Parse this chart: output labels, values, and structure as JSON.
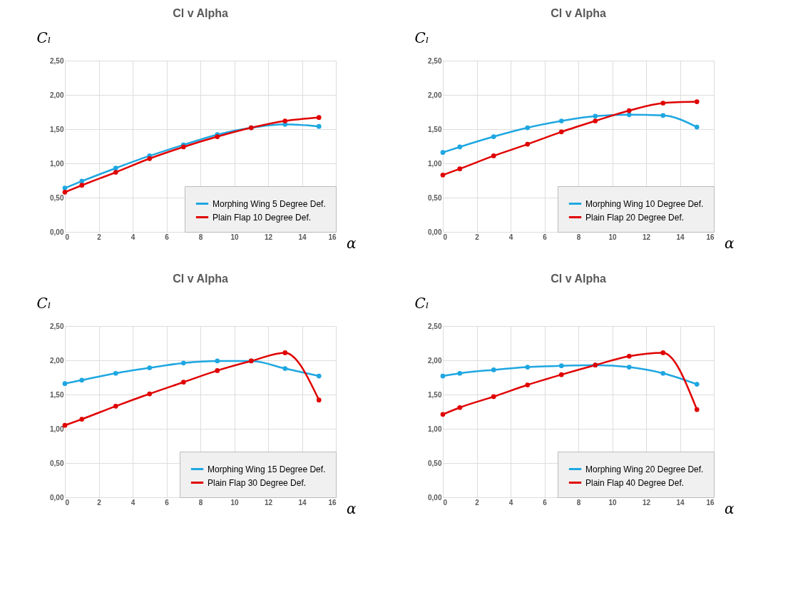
{
  "chart_data": [
    {
      "type": "line",
      "title": "Cl v Alpha",
      "xlabel": "α",
      "ylabel": "Cₗ",
      "x": [
        0,
        1,
        3,
        5,
        7,
        9,
        11,
        13,
        15
      ],
      "series": [
        {
          "name": "Morphing Wing 5 Degree Def.",
          "color": "#1ea7e1",
          "values": [
            0.64,
            0.74,
            0.93,
            1.11,
            1.27,
            1.42,
            1.52,
            1.57,
            1.54
          ]
        },
        {
          "name": "Plain Flap 10 Degree Def.",
          "color": "#e00000",
          "values": [
            0.58,
            0.68,
            0.87,
            1.07,
            1.24,
            1.39,
            1.52,
            1.62,
            1.67
          ]
        }
      ],
      "xlim": [
        0,
        16
      ],
      "xticks": [
        0,
        2,
        4,
        6,
        8,
        10,
        12,
        14,
        16
      ],
      "ylim": [
        0,
        2.5
      ],
      "yticks": [
        {
          "value": 0,
          "label": "0,00"
        },
        {
          "value": 0.5,
          "label": "0,50"
        },
        {
          "value": 1,
          "label": "1,00"
        },
        {
          "value": 1.5,
          "label": "1,50"
        },
        {
          "value": 2,
          "label": "2,00"
        },
        {
          "value": 2.5,
          "label": "2,50"
        }
      ],
      "grid": true,
      "legend": "bottom right",
      "marker": "circle",
      "line_style": "solid"
    },
    {
      "type": "line",
      "title": "Cl v Alpha",
      "xlabel": "α",
      "ylabel": "Cₗ",
      "x": [
        0,
        1,
        3,
        5,
        7,
        9,
        11,
        13,
        15
      ],
      "series": [
        {
          "name": "Morphing Wing 10 Degree Def.",
          "color": "#1ea7e1",
          "values": [
            1.16,
            1.24,
            1.39,
            1.52,
            1.62,
            1.69,
            1.71,
            1.7,
            1.53
          ]
        },
        {
          "name": "Plain Flap 20 Degree Def.",
          "color": "#e00000",
          "values": [
            0.83,
            0.92,
            1.11,
            1.28,
            1.46,
            1.62,
            1.77,
            1.88,
            1.9
          ]
        }
      ],
      "xlim": [
        0,
        16
      ],
      "xticks": [
        0,
        2,
        4,
        6,
        8,
        10,
        12,
        14,
        16
      ],
      "ylim": [
        0,
        2.5
      ],
      "yticks": [
        {
          "value": 0,
          "label": "0,00"
        },
        {
          "value": 0.5,
          "label": "0,50"
        },
        {
          "value": 1,
          "label": "1,00"
        },
        {
          "value": 1.5,
          "label": "1,50"
        },
        {
          "value": 2,
          "label": "2,00"
        },
        {
          "value": 2.5,
          "label": "2,50"
        }
      ],
      "grid": true,
      "legend": "bottom right",
      "marker": "circle",
      "line_style": "solid"
    },
    {
      "type": "line",
      "title": "Cl v Alpha",
      "xlabel": "α",
      "ylabel": "Cₗ",
      "x": [
        0,
        1,
        3,
        5,
        7,
        9,
        11,
        13,
        15
      ],
      "series": [
        {
          "name": "Morphing Wing 15 Degree Def.",
          "color": "#1ea7e1",
          "values": [
            1.66,
            1.71,
            1.81,
            1.89,
            1.96,
            1.99,
            1.99,
            1.88,
            1.77
          ]
        },
        {
          "name": "Plain Flap 30 Degree Def.",
          "color": "#e00000",
          "values": [
            1.05,
            1.14,
            1.33,
            1.51,
            1.68,
            1.85,
            1.99,
            2.11,
            1.42
          ]
        }
      ],
      "xlim": [
        0,
        16
      ],
      "xticks": [
        0,
        2,
        4,
        6,
        8,
        10,
        12,
        14,
        16
      ],
      "ylim": [
        0,
        2.5
      ],
      "yticks": [
        {
          "value": 0,
          "label": "0,00"
        },
        {
          "value": 0.5,
          "label": "0,50"
        },
        {
          "value": 1,
          "label": "1,00"
        },
        {
          "value": 1.5,
          "label": "1,50"
        },
        {
          "value": 2,
          "label": "2,00"
        },
        {
          "value": 2.5,
          "label": "2,50"
        }
      ],
      "grid": true,
      "legend": "bottom right",
      "marker": "circle",
      "line_style": "solid"
    },
    {
      "type": "line",
      "title": "Cl v Alpha",
      "xlabel": "α",
      "ylabel": "Cₗ",
      "x": [
        0,
        1,
        3,
        5,
        7,
        9,
        11,
        13,
        15
      ],
      "series": [
        {
          "name": "Morphing Wing 20 Degree Def.",
          "color": "#1ea7e1",
          "values": [
            1.77,
            1.81,
            1.86,
            1.9,
            1.92,
            1.93,
            1.9,
            1.81,
            1.65
          ]
        },
        {
          "name": "Plain Flap 40 Degree Def.",
          "color": "#e00000",
          "values": [
            1.21,
            1.31,
            1.47,
            1.64,
            1.79,
            1.93,
            2.06,
            2.11,
            1.28
          ]
        }
      ],
      "xlim": [
        0,
        16
      ],
      "xticks": [
        0,
        2,
        4,
        6,
        8,
        10,
        12,
        14,
        16
      ],
      "ylim": [
        0,
        2.5
      ],
      "yticks": [
        {
          "value": 0,
          "label": "0,00"
        },
        {
          "value": 0.5,
          "label": "0,50"
        },
        {
          "value": 1,
          "label": "1,00"
        },
        {
          "value": 1.5,
          "label": "1,50"
        },
        {
          "value": 2,
          "label": "2,00"
        },
        {
          "value": 2.5,
          "label": "2,50"
        }
      ],
      "grid": true,
      "legend": "bottom right",
      "marker": "circle",
      "line_style": "solid"
    }
  ]
}
